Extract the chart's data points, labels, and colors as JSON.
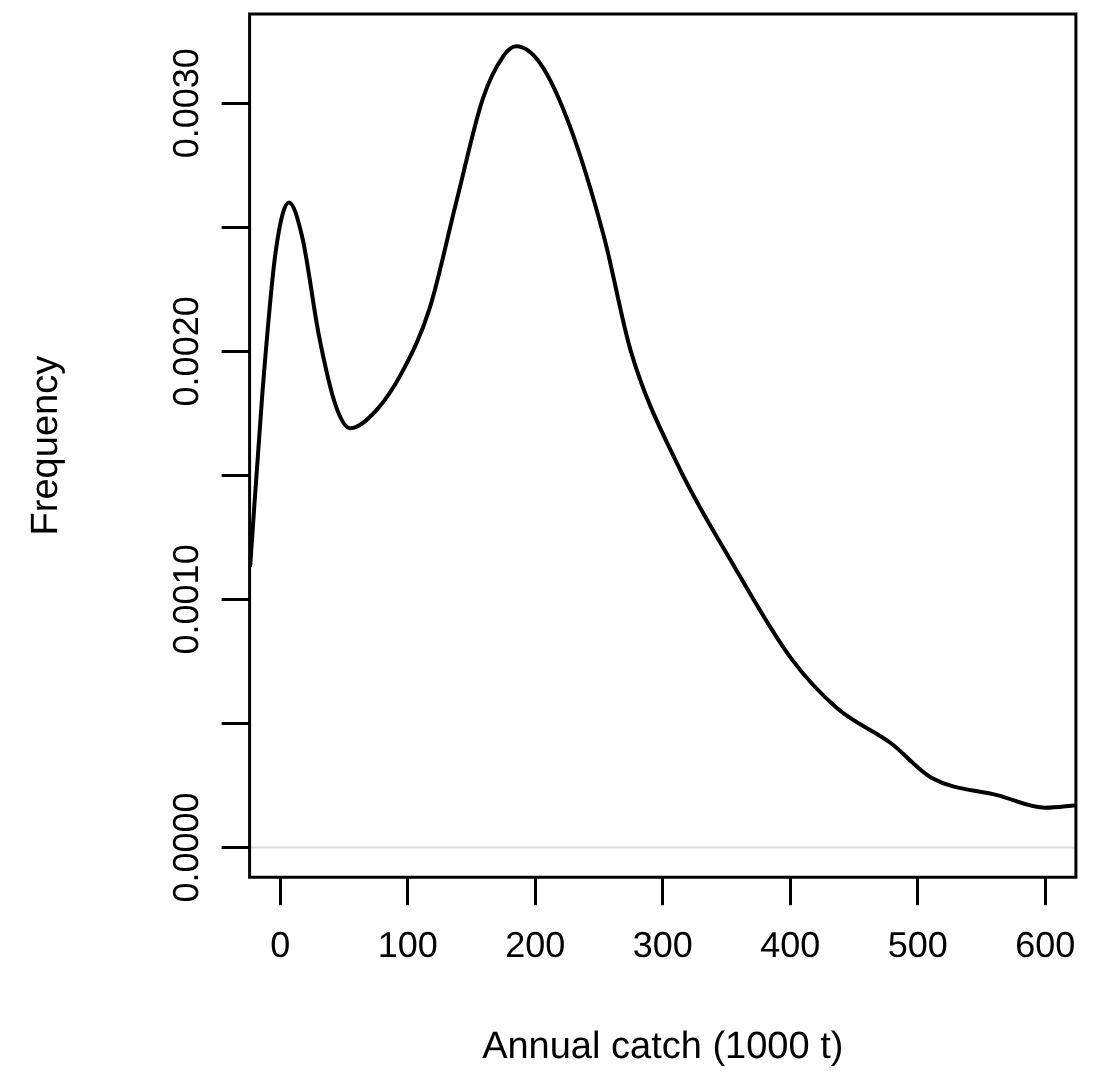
{
  "chart_data": {
    "type": "line",
    "xlabel": "Annual catch (1000 t)",
    "ylabel": "Frequency",
    "series": [
      {
        "color": "#000000",
        "x": [
          -23.6,
          -14,
          -3.6,
          6.9,
          17.3,
          30.5,
          43.6,
          55,
          75,
          96,
          117,
          138,
          159,
          175,
          185,
          204,
          227,
          254,
          275,
          311,
          353,
          401,
          437,
          479,
          511,
          563,
          600,
          624
        ],
        "values": [
          0.00113,
          0.00183,
          0.0024,
          0.0026,
          0.00246,
          0.00206,
          0.00178,
          0.00169,
          0.00176,
          0.00192,
          0.00217,
          0.0026,
          0.00302,
          0.00319,
          0.00323,
          0.00316,
          0.00291,
          0.00246,
          0.002,
          0.00155,
          0.00116,
          0.00076,
          0.00056,
          0.00042,
          0.00028,
          0.00021,
          0.00016,
          0.00017
        ]
      }
    ],
    "xlim": [
      -24,
      624
    ],
    "xticks": [
      0,
      100,
      200,
      300,
      400,
      500,
      600
    ],
    "ylim": [
      -0.00012,
      0.00336
    ],
    "yticks": [
      {
        "value": 0,
        "label": "0.0000"
      },
      {
        "value": 0.0005,
        "label": null
      },
      {
        "value": 0.001,
        "label": "0.0010"
      },
      {
        "value": 0.0015,
        "label": null
      },
      {
        "value": 0.002,
        "label": "0.0020"
      },
      {
        "value": 0.0025,
        "label": null
      },
      {
        "value": 0.003,
        "label": "0.0030"
      }
    ],
    "ref_lines": [
      {
        "axis": "y",
        "value": 0,
        "color": "#d9d9d9"
      }
    ],
    "grid": false,
    "legend": false,
    "marker": "none",
    "line_style": "solid"
  }
}
